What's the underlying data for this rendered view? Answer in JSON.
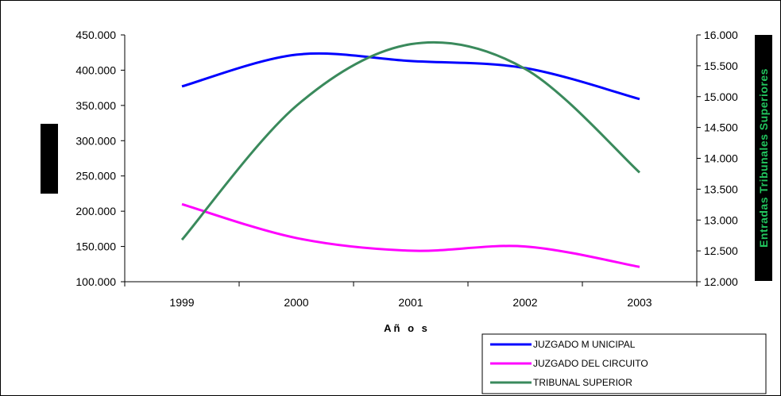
{
  "chart_data": {
    "type": "line",
    "categories": [
      "1999",
      "2000",
      "2001",
      "2002",
      "2003"
    ],
    "xlabel": "Añ o s",
    "ylabel": "",
    "y2label": "Entradas Tribunales Superiores",
    "ylim": [
      100000,
      450000
    ],
    "y2lim": [
      12000,
      16000
    ],
    "yticks": [
      "100.000",
      "150.000",
      "200.000",
      "250.000",
      "300.000",
      "350.000",
      "400.000",
      "450.000"
    ],
    "y2ticks": [
      "12.000",
      "12.500",
      "13.000",
      "13.500",
      "14.000",
      "14.500",
      "15.000",
      "15.500",
      "16.000"
    ],
    "legend_position": "bottom-right",
    "grid": false,
    "series": [
      {
        "name": "JUZGADO M UNICIPAL",
        "axis": "left",
        "color": "#0000ff",
        "values": [
          377000,
          422000,
          413000,
          403000,
          359000
        ]
      },
      {
        "name": "JUZGADO DEL CIRCUITO",
        "axis": "left",
        "color": "#ff00ff",
        "values": [
          210000,
          162000,
          144000,
          150000,
          121000
        ]
      },
      {
        "name": "TRIBUNAL SUPERIOR",
        "axis": "right",
        "color": "#3a8a5c",
        "values": [
          12680,
          14850,
          15850,
          15450,
          13770
        ]
      }
    ]
  }
}
